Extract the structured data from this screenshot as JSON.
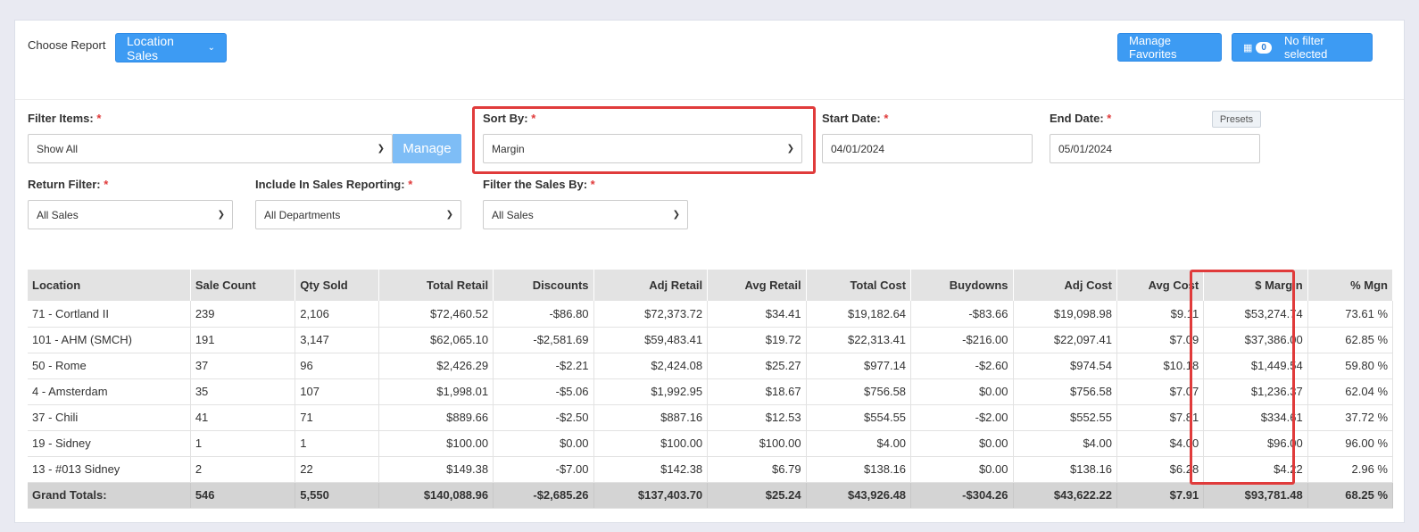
{
  "header": {
    "choose_report_label": "Choose Report",
    "report_button_label": "Location Sales",
    "manage_favorites_label": "Manage Favorites",
    "filter_count": "0",
    "filter_status": "No filter selected"
  },
  "filters": {
    "filter_items_label": "Filter Items:",
    "filter_items_value": "Show All",
    "manage_label": "Manage",
    "sort_by_label": "Sort By:",
    "sort_by_value": "Margin",
    "start_date_label": "Start Date:",
    "start_date_value": "04/01/2024",
    "end_date_label": "End Date:",
    "end_date_value": "05/01/2024",
    "presets_label": "Presets",
    "return_filter_label": "Return Filter:",
    "return_filter_value": "All Sales",
    "include_label": "Include In Sales Reporting:",
    "include_value": "All Departments",
    "filter_sales_label": "Filter the Sales By:",
    "filter_sales_value": "All Sales",
    "required_mark": "*"
  },
  "table": {
    "columns": [
      "Location",
      "Sale Count",
      "Qty Sold",
      "Total Retail",
      "Discounts",
      "Adj Retail",
      "Avg Retail",
      "Total Cost",
      "Buydowns",
      "Adj Cost",
      "Avg Cost",
      "$ Margin",
      "% Mgn"
    ],
    "rows": [
      [
        "71 - Cortland II",
        "239",
        "2,106",
        "$72,460.52",
        "-$86.80",
        "$72,373.72",
        "$34.41",
        "$19,182.64",
        "-$83.66",
        "$19,098.98",
        "$9.11",
        "$53,274.74",
        "73.61 %"
      ],
      [
        "101 - AHM (SMCH)",
        "191",
        "3,147",
        "$62,065.10",
        "-$2,581.69",
        "$59,483.41",
        "$19.72",
        "$22,313.41",
        "-$216.00",
        "$22,097.41",
        "$7.09",
        "$37,386.00",
        "62.85 %"
      ],
      [
        "50 - Rome",
        "37",
        "96",
        "$2,426.29",
        "-$2.21",
        "$2,424.08",
        "$25.27",
        "$977.14",
        "-$2.60",
        "$974.54",
        "$10.18",
        "$1,449.54",
        "59.80 %"
      ],
      [
        "4 - Amsterdam",
        "35",
        "107",
        "$1,998.01",
        "-$5.06",
        "$1,992.95",
        "$18.67",
        "$756.58",
        "$0.00",
        "$756.58",
        "$7.07",
        "$1,236.37",
        "62.04 %"
      ],
      [
        "37 - Chili",
        "41",
        "71",
        "$889.66",
        "-$2.50",
        "$887.16",
        "$12.53",
        "$554.55",
        "-$2.00",
        "$552.55",
        "$7.81",
        "$334.61",
        "37.72 %"
      ],
      [
        "19 - Sidney",
        "1",
        "1",
        "$100.00",
        "$0.00",
        "$100.00",
        "$100.00",
        "$4.00",
        "$0.00",
        "$4.00",
        "$4.00",
        "$96.00",
        "96.00 %"
      ],
      [
        "13 - #013 Sidney",
        "2",
        "22",
        "$149.38",
        "-$7.00",
        "$142.38",
        "$6.79",
        "$138.16",
        "$0.00",
        "$138.16",
        "$6.28",
        "$4.22",
        "2.96 %"
      ]
    ],
    "totals": [
      "Grand Totals:",
      "546",
      "5,550",
      "$140,088.96",
      "-$2,685.26",
      "$137,403.70",
      "$25.24",
      "$43,926.48",
      "-$304.26",
      "$43,622.22",
      "$7.91",
      "$93,781.48",
      "68.25 %"
    ]
  }
}
